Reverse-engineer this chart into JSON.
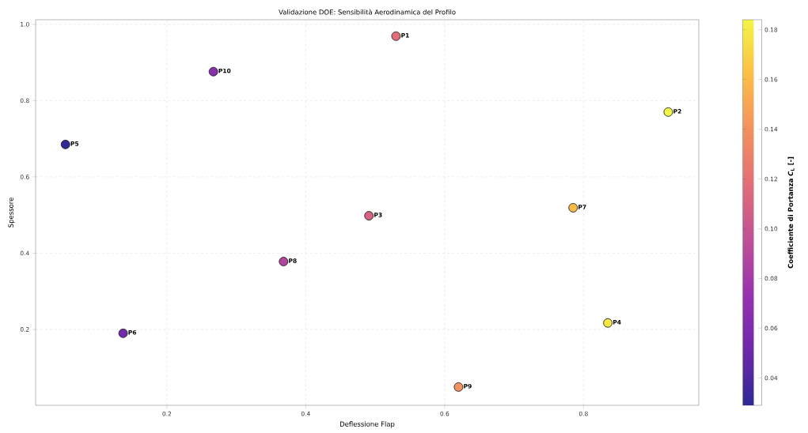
{
  "chart_data": {
    "type": "scatter",
    "title": "Validazione DOE: Sensibilità Aerodinamica del Profilo",
    "xlabel": "Deflessione Flap",
    "ylabel": "Spessore",
    "clabel": "Coefficiente di Portanza *C*$_{L}$ [-]",
    "x": [
      0.53,
      0.922,
      0.491,
      0.835,
      0.054,
      0.137,
      0.785,
      0.368,
      0.62,
      0.267
    ],
    "values": [
      0.969,
      0.77,
      0.498,
      0.217,
      0.685,
      0.19,
      0.519,
      0.378,
      0.049,
      0.876
    ],
    "cvalues": [
      0.117,
      0.184,
      0.11,
      0.178,
      0.03,
      0.055,
      0.16,
      0.088,
      0.14,
      0.066
    ],
    "clim": [
      0.029,
      0.184
    ],
    "cticks": [
      0.04,
      0.06,
      0.08,
      {
        "value": 0.1,
        "label": "0.10"
      },
      0.12,
      0.14,
      0.16,
      0.18
    ],
    "xlim": [
      0.011,
      0.966
    ],
    "ylim": [
      0.001,
      1.012
    ],
    "xticks": [
      0.2,
      0.4,
      0.6,
      0.8
    ],
    "yticks": [
      0.2,
      0.4,
      0.6,
      0.8,
      {
        "value": 1.0,
        "label": "1.0"
      }
    ],
    "grid": true,
    "marker": "circle",
    "annotations": [
      {
        "text": "P1",
        "x": 0.53,
        "y": 0.969
      },
      {
        "text": "P2",
        "x": 0.922,
        "y": 0.77
      },
      {
        "text": "P3",
        "x": 0.491,
        "y": 0.498
      },
      {
        "text": "P4",
        "x": 0.835,
        "y": 0.217
      },
      {
        "text": "P5",
        "x": 0.054,
        "y": 0.685
      },
      {
        "text": "P6",
        "x": 0.137,
        "y": 0.19
      },
      {
        "text": "P7",
        "x": 0.785,
        "y": 0.519
      },
      {
        "text": "P8",
        "x": 0.368,
        "y": 0.378
      },
      {
        "text": "P9",
        "x": 0.62,
        "y": 0.049
      },
      {
        "text": "P10",
        "x": 0.267,
        "y": 0.876
      }
    ]
  }
}
